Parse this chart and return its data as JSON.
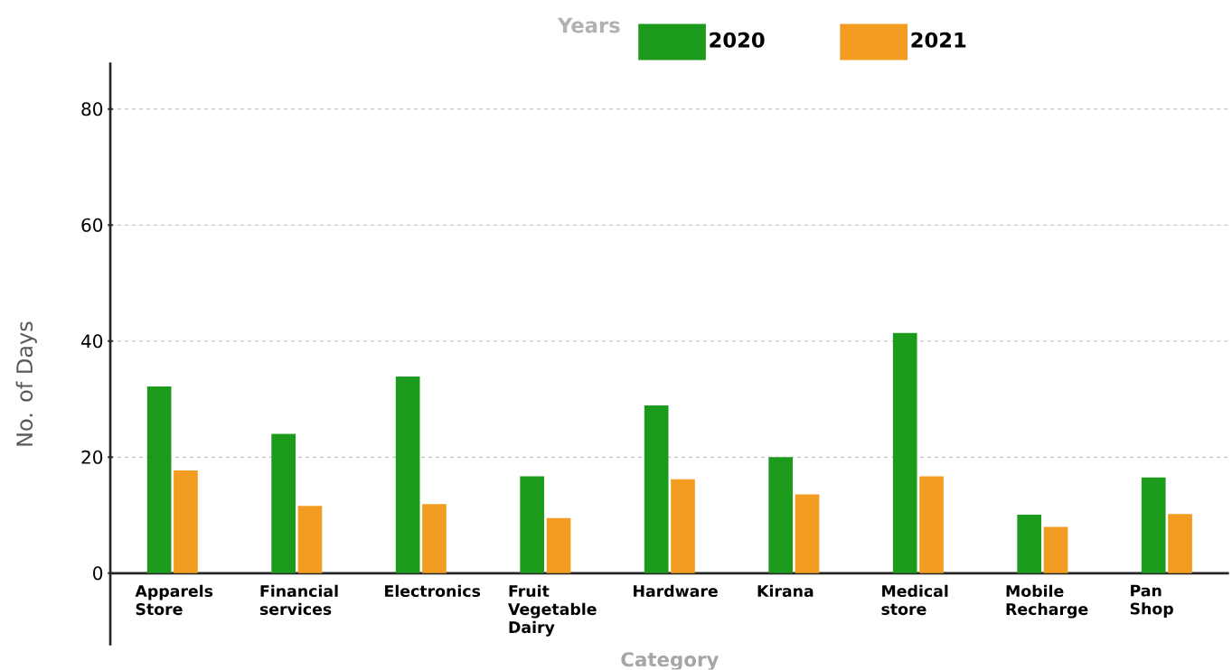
{
  "chart_data": {
    "type": "bar",
    "xlabel": "Category",
    "ylabel": "No. of Days",
    "legend_title": "Years",
    "categories": [
      "Apparels Store",
      "Financial services",
      "Electronics",
      "Fruit Vegetable Dairy",
      "Hardware",
      "Kirana",
      "Medical store",
      "Mobile Recharge",
      "Pan Shop"
    ],
    "series": [
      {
        "name": "2020",
        "color": "#1c9a1c",
        "values": [
          32.2,
          24.0,
          33.9,
          16.7,
          28.9,
          20.0,
          41.4,
          10.1,
          16.5
        ]
      },
      {
        "name": "2021",
        "color": "#f39c22",
        "values": [
          17.7,
          11.6,
          11.9,
          9.5,
          16.2,
          13.6,
          16.7,
          8.0,
          10.2
        ]
      }
    ],
    "ylim": [
      0,
      88
    ],
    "yticks": [
      0,
      20,
      40,
      60,
      80
    ],
    "grid": "y",
    "legend": "top"
  }
}
